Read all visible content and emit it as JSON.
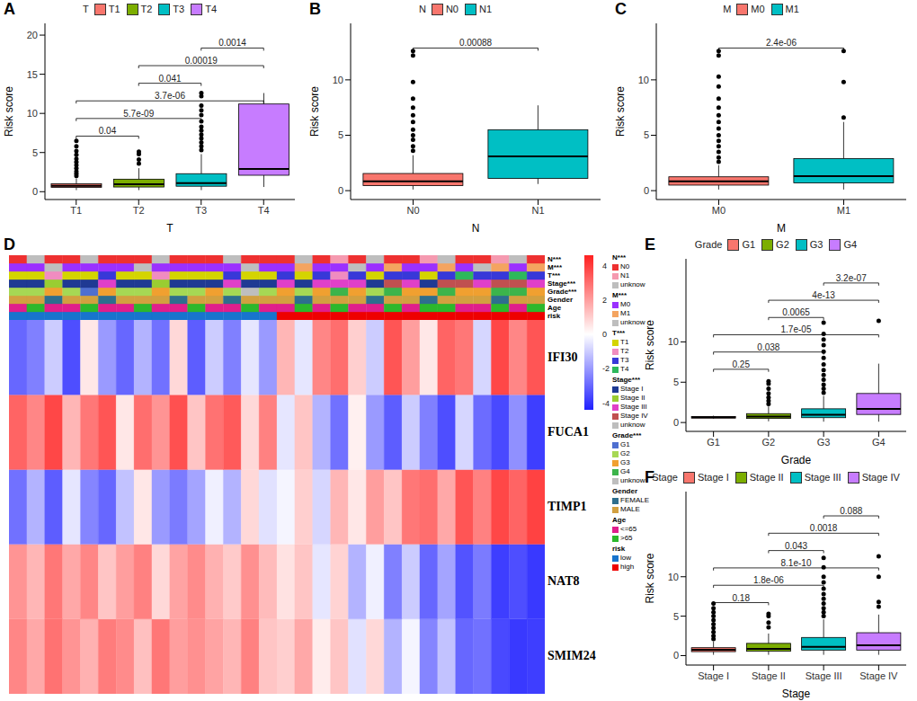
{
  "chart_data": [
    {
      "panel": "A",
      "type": "box",
      "legend_title": "T",
      "legend": "top",
      "x_label": "T",
      "y_label": "Risk score",
      "grid": false,
      "categories": [
        "T1",
        "T2",
        "T3",
        "T4"
      ],
      "colors": [
        "#F8766D",
        "#7CAE00",
        "#00BFC4",
        "#C77CFF"
      ],
      "ylim": [
        -1,
        21.5
      ],
      "yticks": [
        0,
        5,
        10,
        15,
        20
      ],
      "boxes": [
        {
          "low": 0.2,
          "q1": 0.55,
          "median": 0.75,
          "q3": 1.0,
          "high": 1.7,
          "outliers": [
            2.0,
            2.3,
            2.6,
            3.0,
            3.4,
            3.8,
            4.2,
            4.7,
            5.2,
            5.8,
            6.5
          ]
        },
        {
          "low": 0.2,
          "q1": 0.6,
          "median": 0.95,
          "q3": 1.6,
          "high": 3.0,
          "outliers": [
            3.6,
            4.1,
            4.8,
            5.1
          ]
        },
        {
          "low": 0.2,
          "q1": 0.7,
          "median": 1.1,
          "q3": 2.3,
          "high": 4.8,
          "outliers": [
            5.3,
            5.8,
            6.3,
            6.8,
            7.3,
            7.8,
            8.3,
            9.0,
            9.8,
            10.4,
            11.0,
            12.2,
            12.6
          ]
        },
        {
          "low": 0.6,
          "q1": 2.1,
          "median": 2.9,
          "q3": 11.2,
          "high": 12.6,
          "outliers": []
        }
      ],
      "comparisons": [
        {
          "groups": [
            "T1",
            "T2"
          ],
          "p": "0.04"
        },
        {
          "groups": [
            "T1",
            "T3"
          ],
          "p": "5.7e-09"
        },
        {
          "groups": [
            "T1",
            "T4"
          ],
          "p": "3.7e-06"
        },
        {
          "groups": [
            "T2",
            "T3"
          ],
          "p": "0.041"
        },
        {
          "groups": [
            "T2",
            "T4"
          ],
          "p": "0.00019"
        },
        {
          "groups": [
            "T3",
            "T4"
          ],
          "p": "0.0014"
        }
      ]
    },
    {
      "panel": "B",
      "type": "box",
      "legend_title": "N",
      "legend": "top",
      "x_label": "N",
      "y_label": "Risk score",
      "grid": false,
      "categories": [
        "N0",
        "N1"
      ],
      "colors": [
        "#F8766D",
        "#00BFC4"
      ],
      "ylim": [
        -0.8,
        15.1
      ],
      "yticks": [
        0,
        5,
        10
      ],
      "boxes": [
        {
          "low": 0.1,
          "q1": 0.45,
          "median": 0.85,
          "q3": 1.55,
          "high": 3.2,
          "outliers": [
            3.6,
            4.0,
            4.6,
            5.0,
            5.5,
            6.2,
            6.8,
            7.5,
            8.3,
            9.8,
            12.2,
            12.6
          ]
        },
        {
          "low": 0.6,
          "q1": 1.1,
          "median": 3.1,
          "q3": 5.5,
          "high": 7.7,
          "outliers": []
        }
      ],
      "comparisons": [
        {
          "groups": [
            "N0",
            "N1"
          ],
          "p": "0.00088"
        }
      ]
    },
    {
      "panel": "C",
      "type": "box",
      "legend_title": "M",
      "legend": "top",
      "x_label": "M",
      "y_label": "Risk score",
      "grid": false,
      "categories": [
        "M0",
        "M1"
      ],
      "colors": [
        "#F8766D",
        "#00BFC4"
      ],
      "ylim": [
        -0.8,
        15.1
      ],
      "yticks": [
        0,
        5,
        10
      ],
      "boxes": [
        {
          "low": 0.1,
          "q1": 0.5,
          "median": 0.85,
          "q3": 1.25,
          "high": 2.3,
          "outliers": [
            2.6,
            3.0,
            3.5,
            4.0,
            4.5,
            5.0,
            5.6,
            6.2,
            6.8,
            7.5,
            8.3,
            9.4,
            10.3,
            12.2,
            12.6
          ]
        },
        {
          "low": 0.1,
          "q1": 0.7,
          "median": 1.3,
          "q3": 2.9,
          "high": 6.2,
          "outliers": [
            6.6,
            9.8,
            12.6
          ]
        }
      ],
      "comparisons": [
        {
          "groups": [
            "M0",
            "M1"
          ],
          "p": "2.4e-06"
        }
      ]
    },
    {
      "panel": "D",
      "type": "heatmap",
      "rows": [
        "IFI30",
        "FUCA1",
        "TIMP1",
        "NAT8",
        "SMIM24"
      ],
      "cells": [
        [
          -3,
          -2.5,
          -1,
          -3.5,
          0.5,
          -2,
          -3,
          -1.5,
          -2.8,
          0.8,
          -3.2,
          -1,
          -2.5,
          -0.5,
          -2,
          1.5,
          -0.5,
          2.5,
          3,
          1,
          -1,
          3.5,
          2,
          0.5,
          3.2,
          2.8,
          -0.8,
          3.8,
          2.5,
          3.5
        ],
        [
          3.2,
          2.5,
          3.8,
          1.5,
          2.8,
          3.5,
          0.5,
          3,
          2.2,
          3.6,
          1.2,
          2.9,
          3.4,
          0.8,
          2.6,
          -0.5,
          1.2,
          -1.5,
          -2.8,
          0.3,
          -2,
          -3.2,
          -1,
          -2.5,
          -3.5,
          -0.8,
          -2.9,
          -3.6,
          -2.2,
          -3.8
        ],
        [
          -2.8,
          -1.5,
          -3.2,
          -0.5,
          -2.4,
          -3,
          -1.2,
          0.5,
          -2,
          -2.6,
          -1.8,
          -0.3,
          -1.5,
          0.8,
          -0.6,
          -0.2,
          1,
          -0.8,
          1.5,
          0.5,
          2,
          1.2,
          2.8,
          3,
          1.8,
          3.5,
          2.6,
          3.8,
          3.2,
          3.9
        ],
        [
          2.2,
          1.5,
          2.8,
          1.8,
          2.5,
          1.2,
          2,
          2.6,
          0.8,
          1.9,
          2.4,
          1.6,
          1.1,
          2.3,
          1.4,
          0.6,
          1.2,
          -0.5,
          0.9,
          -1.5,
          -0.3,
          -2.5,
          -1,
          -3,
          -1.8,
          -3.4,
          -2.6,
          -3.8,
          -3.5,
          -3.9
        ],
        [
          2.5,
          1.8,
          2.9,
          2.2,
          1.6,
          2.7,
          2.4,
          1.3,
          2.8,
          2,
          2.3,
          1.9,
          1.5,
          2.6,
          1.2,
          1,
          1.8,
          0.4,
          1.2,
          -0.6,
          0.8,
          -1.5,
          -0.2,
          -2.4,
          -1.2,
          -3,
          -2.8,
          -3.6,
          -3.9,
          -3.8
        ]
      ],
      "colorbar": {
        "range": [
          -4.4,
          4.6
        ],
        "ticks": [
          4,
          2,
          0,
          -2,
          -4
        ],
        "colors": [
          "#2020FF",
          "#FFFFFF",
          "#FF2020"
        ]
      },
      "annotations": [
        {
          "name": "N***",
          "levels": [
            "N0",
            "N1",
            "unknow"
          ],
          "colors": [
            "#EE3030",
            "#F59AB0",
            "#BEBEBE"
          ],
          "values": [
            "N0",
            "unknow",
            "N0",
            "N0",
            "unknow",
            "N0",
            "N0",
            "N0",
            "unknow",
            "N0",
            "N0",
            "N0",
            "unknow",
            "N0",
            "N0",
            "N0",
            "unknow",
            "N0",
            "N1",
            "N0",
            "unknow",
            "N0",
            "N0",
            "N1",
            "unknow",
            "N0",
            "N0",
            "N1",
            "unknow",
            "N0"
          ]
        },
        {
          "name": "M***",
          "levels": [
            "M0",
            "M1",
            "unknow"
          ],
          "colors": [
            "#9B30FF",
            "#F4A460",
            "#BEBEBE"
          ],
          "values": [
            "M0",
            "M0",
            "unknow",
            "M0",
            "M0",
            "M0",
            "M0",
            "unknow",
            "M0",
            "M0",
            "M0",
            "M0",
            "M0",
            "unknow",
            "M0",
            "M0",
            "M1",
            "M0",
            "M0",
            "unknow",
            "M0",
            "M1",
            "M0",
            "M0",
            "M1",
            "M0",
            "unknow",
            "M1",
            "M0",
            "M1"
          ]
        },
        {
          "name": "T***",
          "levels": [
            "T1",
            "T2",
            "T3",
            "T4"
          ],
          "colors": [
            "#D4D400",
            "#F08CC0",
            "#3838D8",
            "#2EB85C"
          ],
          "values": [
            "T1",
            "T1",
            "T2",
            "T1",
            "T1",
            "T3",
            "T1",
            "T1",
            "T2",
            "T1",
            "T1",
            "T1",
            "T3",
            "T1",
            "T1",
            "T3",
            "T1",
            "T3",
            "T2",
            "T3",
            "T1",
            "T3",
            "T3",
            "T1",
            "T3",
            "T4",
            "T3",
            "T3",
            "T4",
            "T3"
          ]
        },
        {
          "name": "Stage***",
          "levels": [
            "Stage I",
            "Stage II",
            "Stage III",
            "Stage IV",
            "unknow"
          ],
          "colors": [
            "#1F3A93",
            "#9ACD32",
            "#E040C8",
            "#C05050",
            "#BEBEBE"
          ],
          "values": [
            "Stage I",
            "Stage I",
            "Stage II",
            "Stage I",
            "Stage I",
            "Stage III",
            "Stage I",
            "Stage I",
            "Stage II",
            "Stage I",
            "Stage I",
            "Stage I",
            "Stage III",
            "Stage I",
            "Stage I",
            "Stage III",
            "Stage I",
            "Stage III",
            "Stage III",
            "Stage III",
            "Stage I",
            "Stage IV",
            "Stage III",
            "Stage I",
            "Stage IV",
            "Stage IV",
            "Stage III",
            "Stage IV",
            "Stage IV",
            "Stage III"
          ]
        },
        {
          "name": "Grade***",
          "levels": [
            "G1",
            "G2",
            "G3",
            "G4",
            "unknow"
          ],
          "colors": [
            "#4F6FD0",
            "#A6D854",
            "#F0A030",
            "#3CB44B",
            "#BEBEBE"
          ],
          "values": [
            "G2",
            "G2",
            "G3",
            "G2",
            "G1",
            "G3",
            "G2",
            "G2",
            "G3",
            "G2",
            "G2",
            "G3",
            "G2",
            "unknow",
            "G2",
            "G3",
            "G2",
            "G3",
            "G4",
            "G3",
            "G2",
            "G4",
            "G3",
            "G3",
            "G4",
            "G3",
            "G3",
            "G4",
            "G4",
            "G3"
          ]
        },
        {
          "name": "Gender",
          "levels": [
            "FEMALE",
            "MALE"
          ],
          "colors": [
            "#2E6E8E",
            "#D2A040"
          ],
          "values": [
            "MALE",
            "MALE",
            "FEMALE",
            "MALE",
            "MALE",
            "FEMALE",
            "MALE",
            "MALE",
            "MALE",
            "FEMALE",
            "MALE",
            "MALE",
            "FEMALE",
            "MALE",
            "MALE",
            "MALE",
            "FEMALE",
            "MALE",
            "MALE",
            "MALE",
            "FEMALE",
            "MALE",
            "MALE",
            "FEMALE",
            "MALE",
            "MALE",
            "MALE",
            "FEMALE",
            "MALE",
            "MALE"
          ]
        },
        {
          "name": "Age",
          "levels": [
            "<=65",
            ">65"
          ],
          "colors": [
            "#E01E8C",
            "#2CB82C"
          ],
          "values": [
            "<=65",
            ">65",
            "<=65",
            "<=65",
            ">65",
            "<=65",
            "<=65",
            ">65",
            "<=65",
            "<=65",
            ">65",
            "<=65",
            "<=65",
            ">65",
            "<=65",
            "<=65",
            ">65",
            "<=65",
            ">65",
            "<=65",
            "<=65",
            ">65",
            "<=65",
            ">65",
            ">65",
            "<=65",
            "<=65",
            ">65",
            "<=65",
            ">65"
          ]
        },
        {
          "name": "risk",
          "levels": [
            "low",
            "high"
          ],
          "colors": [
            "#1874CD",
            "#EE0000"
          ],
          "values": [
            "low",
            "low",
            "low",
            "low",
            "low",
            "low",
            "low",
            "low",
            "low",
            "low",
            "low",
            "low",
            "low",
            "low",
            "low",
            "high",
            "high",
            "high",
            "high",
            "high",
            "high",
            "high",
            "high",
            "high",
            "high",
            "high",
            "high",
            "high",
            "high",
            "high"
          ]
        }
      ]
    },
    {
      "panel": "E",
      "type": "box",
      "legend_title": "Grade",
      "legend": "top",
      "x_label": "Grade",
      "y_label": "Risk score",
      "grid": false,
      "categories": [
        "G1",
        "G2",
        "G3",
        "G4"
      ],
      "colors": [
        "#F8766D",
        "#7CAE00",
        "#00BFC4",
        "#C77CFF"
      ],
      "ylim": [
        -1.1,
        20.3
      ],
      "yticks": [
        0,
        5,
        10
      ],
      "boxes": [
        {
          "low": 0.45,
          "q1": 0.55,
          "median": 0.65,
          "q3": 0.75,
          "high": 0.85,
          "outliers": []
        },
        {
          "low": 0.15,
          "q1": 0.5,
          "median": 0.75,
          "q3": 1.1,
          "high": 2.0,
          "outliers": [
            2.3,
            2.7,
            3.1,
            3.6,
            4.2,
            4.8,
            5.1
          ]
        },
        {
          "low": 0.1,
          "q1": 0.6,
          "median": 0.95,
          "q3": 1.7,
          "high": 3.3,
          "outliers": [
            3.7,
            4.2,
            4.7,
            5.3,
            5.9,
            6.5,
            7.2,
            8.0,
            8.8,
            9.6,
            10.3,
            11.0,
            12.4
          ]
        },
        {
          "low": 0.1,
          "q1": 1.0,
          "median": 1.7,
          "q3": 3.6,
          "high": 7.3,
          "outliers": [
            12.6
          ]
        }
      ],
      "comparisons": [
        {
          "groups": [
            "G1",
            "G2"
          ],
          "p": "0.25"
        },
        {
          "groups": [
            "G1",
            "G3"
          ],
          "p": "0.038"
        },
        {
          "groups": [
            "G1",
            "G4"
          ],
          "p": "1.7e-05"
        },
        {
          "groups": [
            "G2",
            "G3"
          ],
          "p": "0.0065"
        },
        {
          "groups": [
            "G2",
            "G4"
          ],
          "p": "4e-13"
        },
        {
          "groups": [
            "G3",
            "G4"
          ],
          "p": "3.2e-07"
        }
      ]
    },
    {
      "panel": "F",
      "type": "box",
      "legend_title": "Stage",
      "legend": "top",
      "x_label": "Stage",
      "y_label": "Risk score",
      "grid": false,
      "categories": [
        "Stage I",
        "Stage II",
        "Stage III",
        "Stage IV"
      ],
      "colors": [
        "#F8766D",
        "#7CAE00",
        "#00BFC4",
        "#C77CFF"
      ],
      "ylim": [
        -1.2,
        20.8
      ],
      "yticks": [
        0,
        5,
        10
      ],
      "boxes": [
        {
          "low": 0.1,
          "q1": 0.5,
          "median": 0.75,
          "q3": 1.0,
          "high": 1.8,
          "outliers": [
            2.1,
            2.5,
            3.0,
            3.5,
            4.0,
            4.5,
            5.0,
            5.5,
            6.0,
            6.6
          ]
        },
        {
          "low": 0.1,
          "q1": 0.55,
          "median": 0.85,
          "q3": 1.55,
          "high": 2.8,
          "outliers": [
            3.6,
            4.2,
            5.0,
            5.3
          ]
        },
        {
          "low": 0.1,
          "q1": 0.7,
          "median": 1.1,
          "q3": 2.3,
          "high": 4.6,
          "outliers": [
            5.0,
            5.5,
            6.0,
            6.6,
            7.2,
            7.8,
            8.5,
            9.3,
            10.0,
            11.2,
            12.4
          ]
        },
        {
          "low": 0.1,
          "q1": 0.7,
          "median": 1.3,
          "q3": 2.9,
          "high": 5.2,
          "outliers": [
            6.2,
            6.8,
            10.0,
            12.6
          ]
        }
      ],
      "comparisons": [
        {
          "groups": [
            "Stage I",
            "Stage II"
          ],
          "p": "0.18"
        },
        {
          "groups": [
            "Stage I",
            "Stage III"
          ],
          "p": "1.8e-06"
        },
        {
          "groups": [
            "Stage I",
            "Stage IV"
          ],
          "p": "8.1e-10"
        },
        {
          "groups": [
            "Stage II",
            "Stage III"
          ],
          "p": "0.043"
        },
        {
          "groups": [
            "Stage II",
            "Stage IV"
          ],
          "p": "0.0018"
        },
        {
          "groups": [
            "Stage III",
            "Stage IV"
          ],
          "p": "0.088"
        }
      ]
    }
  ]
}
